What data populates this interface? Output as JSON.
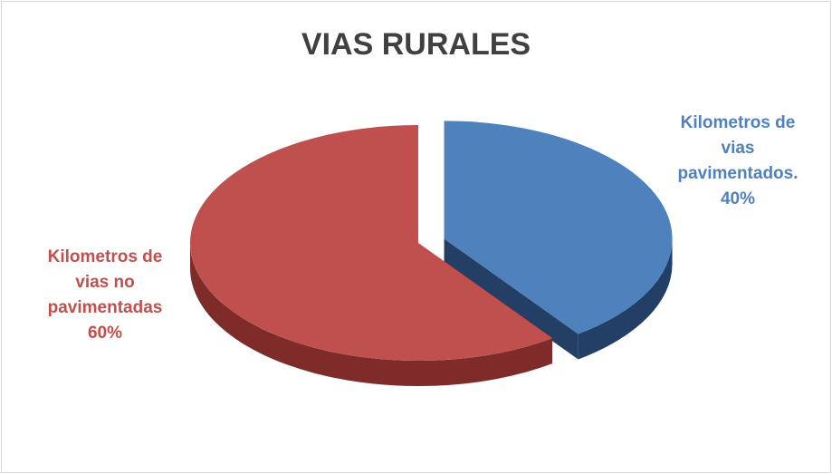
{
  "chart_data": {
    "type": "pie3d",
    "title": "VIAS RURALES",
    "categories": [
      "Kilometros de vias pavimentados.",
      "Kilometros de vias no pavimentadas"
    ],
    "values": [
      40,
      60
    ],
    "value_labels": [
      "40%",
      "60%"
    ],
    "colors": [
      "#4f81bd",
      "#c0504d"
    ],
    "side_colors": [
      "#243f66",
      "#7e2b29"
    ]
  }
}
